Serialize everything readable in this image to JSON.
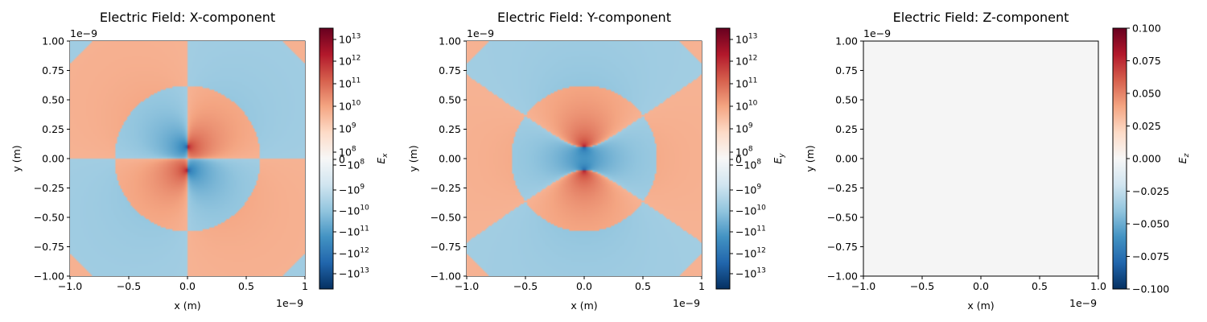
{
  "chart_data": [
    {
      "type": "heatmap",
      "title": "Electric Field: X-component",
      "xlabel": "x (m)",
      "ylabel": "y (m)",
      "xlim": [
        -1.0,
        1.0
      ],
      "ylim": [
        -1.0,
        1.0
      ],
      "x_offset_label": "1e−9",
      "y_offset_label": "1e−9",
      "xticks": [
        "−1.0",
        "−0.5",
        "0.0",
        "0.5",
        "1"
      ],
      "yticks": [
        "1.00",
        "0.75",
        "0.50",
        "0.25",
        "0.00",
        "−0.25",
        "−0.50",
        "−0.75",
        "−1.00"
      ],
      "colormap": "RdBu_r",
      "colorbar": {
        "label": "E_x",
        "scale": "symlog",
        "ticks": [
          {
            "mant": "10",
            "exp": "13"
          },
          {
            "mant": "10",
            "exp": "12"
          },
          {
            "mant": "10",
            "exp": "11"
          },
          {
            "mant": "10",
            "exp": "10"
          },
          {
            "mant": "10",
            "exp": "9"
          },
          {
            "mant": "10",
            "exp": "8"
          },
          {
            "mant": "0",
            "exp": ""
          },
          {
            "mant": "−10",
            "exp": "8"
          },
          {
            "mant": "−10",
            "exp": "9"
          },
          {
            "mant": "−10",
            "exp": "10"
          },
          {
            "mant": "−10",
            "exp": "11"
          },
          {
            "mant": "−10",
            "exp": "12"
          },
          {
            "mant": "−10",
            "exp": "13"
          }
        ]
      }
    },
    {
      "type": "heatmap",
      "title": "Electric Field: Y-component",
      "xlabel": "x (m)",
      "ylabel": "y (m)",
      "xlim": [
        -1.0,
        1.0
      ],
      "ylim": [
        -1.0,
        1.0
      ],
      "x_offset_label": "1e−9",
      "y_offset_label": "1e−9",
      "xticks": [
        "−1.0",
        "−0.5",
        "0.0",
        "0.5",
        "1"
      ],
      "yticks": [
        "1.00",
        "0.75",
        "0.50",
        "0.25",
        "0.00",
        "−0.25",
        "−0.50",
        "−0.75",
        "−1.00"
      ],
      "colormap": "RdBu_r",
      "colorbar": {
        "label": "E_y",
        "scale": "symlog",
        "ticks": [
          {
            "mant": "10",
            "exp": "13"
          },
          {
            "mant": "10",
            "exp": "12"
          },
          {
            "mant": "10",
            "exp": "11"
          },
          {
            "mant": "10",
            "exp": "10"
          },
          {
            "mant": "10",
            "exp": "9"
          },
          {
            "mant": "10",
            "exp": "8"
          },
          {
            "mant": "0",
            "exp": ""
          },
          {
            "mant": "−10",
            "exp": "8"
          },
          {
            "mant": "−10",
            "exp": "9"
          },
          {
            "mant": "−10",
            "exp": "10"
          },
          {
            "mant": "−10",
            "exp": "11"
          },
          {
            "mant": "−10",
            "exp": "12"
          },
          {
            "mant": "−10",
            "exp": "13"
          }
        ]
      }
    },
    {
      "type": "heatmap",
      "title": "Electric Field: Z-component",
      "xlabel": "x (m)",
      "ylabel": "y (m)",
      "xlim": [
        -1.0,
        1.0
      ],
      "ylim": [
        -1.0,
        1.0
      ],
      "x_offset_label": "1e−9",
      "y_offset_label": "1e−9",
      "xticks": [
        "−1.0",
        "−0.5",
        "0.0",
        "0.5",
        "1.0"
      ],
      "yticks": [
        "1.00",
        "0.75",
        "0.50",
        "0.25",
        "0.00",
        "−0.25",
        "−0.50",
        "−0.75",
        "−1.00"
      ],
      "colormap": "RdBu_r",
      "uniform_value": 0.0,
      "uniform_color": "#f5f5f5",
      "colorbar": {
        "label": "E_z",
        "scale": "linear",
        "ticks": [
          {
            "mant": "0.100",
            "exp": ""
          },
          {
            "mant": "0.075",
            "exp": ""
          },
          {
            "mant": "0.050",
            "exp": ""
          },
          {
            "mant": "0.025",
            "exp": ""
          },
          {
            "mant": "0.000",
            "exp": ""
          },
          {
            "mant": "−0.025",
            "exp": ""
          },
          {
            "mant": "−0.050",
            "exp": ""
          },
          {
            "mant": "−0.075",
            "exp": ""
          },
          {
            "mant": "−0.100",
            "exp": ""
          }
        ]
      }
    }
  ],
  "colors": {
    "cmap_stops": [
      "#053061",
      "#2166ac",
      "#4393c3",
      "#92c5de",
      "#d1e5f0",
      "#f7f7f7",
      "#fddbc7",
      "#f4a582",
      "#d6604d",
      "#b2182b",
      "#67001f"
    ]
  }
}
